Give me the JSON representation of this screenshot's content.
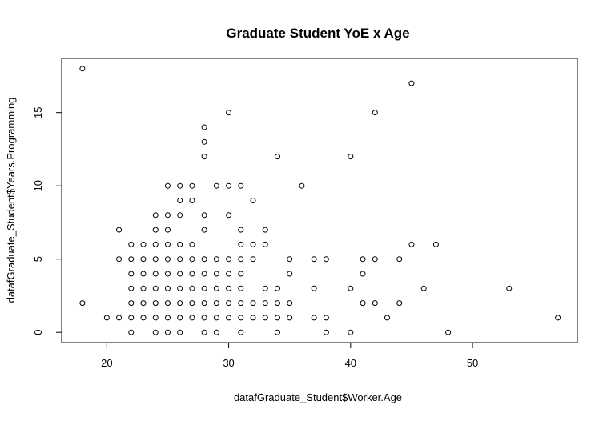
{
  "chart_data": {
    "type": "scatter",
    "title": "Graduate Student YoE x Age",
    "xlabel": "datafGraduate_Student$Worker.Age",
    "ylabel": "datafGraduate_Student$Years.Programming",
    "xlim": [
      16.3,
      58.6
    ],
    "ylim": [
      -0.7,
      18.7
    ],
    "xticks": [
      20,
      30,
      40,
      50
    ],
    "yticks": [
      0,
      5,
      10,
      15
    ],
    "grid": false,
    "legend": "none",
    "points": [
      {
        "x": 18,
        "y": 18
      },
      {
        "x": 18,
        "y": 2
      },
      {
        "x": 20,
        "y": 1
      },
      {
        "x": 21,
        "y": 7
      },
      {
        "x": 21,
        "y": 5
      },
      {
        "x": 21,
        "y": 1
      },
      {
        "x": 22,
        "y": 6
      },
      {
        "x": 22,
        "y": 5
      },
      {
        "x": 22,
        "y": 4
      },
      {
        "x": 22,
        "y": 3
      },
      {
        "x": 22,
        "y": 2
      },
      {
        "x": 22,
        "y": 1
      },
      {
        "x": 22,
        "y": 0
      },
      {
        "x": 23,
        "y": 6
      },
      {
        "x": 23,
        "y": 5
      },
      {
        "x": 23,
        "y": 4
      },
      {
        "x": 23,
        "y": 3
      },
      {
        "x": 23,
        "y": 2
      },
      {
        "x": 23,
        "y": 1
      },
      {
        "x": 24,
        "y": 8
      },
      {
        "x": 24,
        "y": 7
      },
      {
        "x": 24,
        "y": 6
      },
      {
        "x": 24,
        "y": 5
      },
      {
        "x": 24,
        "y": 4
      },
      {
        "x": 24,
        "y": 3
      },
      {
        "x": 24,
        "y": 2
      },
      {
        "x": 24,
        "y": 1
      },
      {
        "x": 24,
        "y": 0
      },
      {
        "x": 25,
        "y": 10
      },
      {
        "x": 25,
        "y": 8
      },
      {
        "x": 25,
        "y": 7
      },
      {
        "x": 25,
        "y": 6
      },
      {
        "x": 25,
        "y": 5
      },
      {
        "x": 25,
        "y": 4
      },
      {
        "x": 25,
        "y": 3
      },
      {
        "x": 25,
        "y": 2
      },
      {
        "x": 25,
        "y": 1
      },
      {
        "x": 25,
        "y": 0
      },
      {
        "x": 26,
        "y": 10
      },
      {
        "x": 26,
        "y": 9
      },
      {
        "x": 26,
        "y": 8
      },
      {
        "x": 26,
        "y": 6
      },
      {
        "x": 26,
        "y": 5
      },
      {
        "x": 26,
        "y": 4
      },
      {
        "x": 26,
        "y": 3
      },
      {
        "x": 26,
        "y": 2
      },
      {
        "x": 26,
        "y": 1
      },
      {
        "x": 26,
        "y": 0
      },
      {
        "x": 27,
        "y": 10
      },
      {
        "x": 27,
        "y": 9
      },
      {
        "x": 27,
        "y": 6
      },
      {
        "x": 27,
        "y": 5
      },
      {
        "x": 27,
        "y": 4
      },
      {
        "x": 27,
        "y": 3
      },
      {
        "x": 27,
        "y": 2
      },
      {
        "x": 27,
        "y": 1
      },
      {
        "x": 28,
        "y": 14
      },
      {
        "x": 28,
        "y": 13
      },
      {
        "x": 28,
        "y": 12
      },
      {
        "x": 28,
        "y": 8
      },
      {
        "x": 28,
        "y": 7
      },
      {
        "x": 28,
        "y": 5
      },
      {
        "x": 28,
        "y": 4
      },
      {
        "x": 28,
        "y": 3
      },
      {
        "x": 28,
        "y": 2
      },
      {
        "x": 28,
        "y": 1
      },
      {
        "x": 28,
        "y": 0
      },
      {
        "x": 29,
        "y": 10
      },
      {
        "x": 29,
        "y": 5
      },
      {
        "x": 29,
        "y": 4
      },
      {
        "x": 29,
        "y": 3
      },
      {
        "x": 29,
        "y": 2
      },
      {
        "x": 29,
        "y": 1
      },
      {
        "x": 29,
        "y": 0
      },
      {
        "x": 30,
        "y": 15
      },
      {
        "x": 30,
        "y": 10
      },
      {
        "x": 30,
        "y": 8
      },
      {
        "x": 30,
        "y": 5
      },
      {
        "x": 30,
        "y": 4
      },
      {
        "x": 30,
        "y": 3
      },
      {
        "x": 30,
        "y": 2
      },
      {
        "x": 30,
        "y": 1
      },
      {
        "x": 31,
        "y": 10
      },
      {
        "x": 31,
        "y": 7
      },
      {
        "x": 31,
        "y": 6
      },
      {
        "x": 31,
        "y": 5
      },
      {
        "x": 31,
        "y": 4
      },
      {
        "x": 31,
        "y": 3
      },
      {
        "x": 31,
        "y": 2
      },
      {
        "x": 31,
        "y": 1
      },
      {
        "x": 31,
        "y": 0
      },
      {
        "x": 32,
        "y": 9
      },
      {
        "x": 32,
        "y": 6
      },
      {
        "x": 32,
        "y": 5
      },
      {
        "x": 32,
        "y": 2
      },
      {
        "x": 32,
        "y": 1
      },
      {
        "x": 33,
        "y": 7
      },
      {
        "x": 33,
        "y": 6
      },
      {
        "x": 33,
        "y": 3
      },
      {
        "x": 33,
        "y": 2
      },
      {
        "x": 33,
        "y": 1
      },
      {
        "x": 34,
        "y": 12
      },
      {
        "x": 34,
        "y": 3
      },
      {
        "x": 34,
        "y": 2
      },
      {
        "x": 34,
        "y": 1
      },
      {
        "x": 34,
        "y": 0
      },
      {
        "x": 35,
        "y": 5
      },
      {
        "x": 35,
        "y": 4
      },
      {
        "x": 35,
        "y": 2
      },
      {
        "x": 35,
        "y": 1
      },
      {
        "x": 36,
        "y": 10
      },
      {
        "x": 37,
        "y": 5
      },
      {
        "x": 37,
        "y": 3
      },
      {
        "x": 37,
        "y": 1
      },
      {
        "x": 38,
        "y": 5
      },
      {
        "x": 38,
        "y": 1
      },
      {
        "x": 38,
        "y": 0
      },
      {
        "x": 40,
        "y": 12
      },
      {
        "x": 40,
        "y": 3
      },
      {
        "x": 40,
        "y": 0
      },
      {
        "x": 41,
        "y": 5
      },
      {
        "x": 41,
        "y": 4
      },
      {
        "x": 41,
        "y": 2
      },
      {
        "x": 42,
        "y": 15
      },
      {
        "x": 42,
        "y": 5
      },
      {
        "x": 42,
        "y": 2
      },
      {
        "x": 43,
        "y": 1
      },
      {
        "x": 44,
        "y": 5
      },
      {
        "x": 44,
        "y": 2
      },
      {
        "x": 45,
        "y": 17
      },
      {
        "x": 45,
        "y": 6
      },
      {
        "x": 46,
        "y": 3
      },
      {
        "x": 47,
        "y": 6
      },
      {
        "x": 48,
        "y": 0
      },
      {
        "x": 53,
        "y": 3
      },
      {
        "x": 57,
        "y": 1
      }
    ]
  }
}
